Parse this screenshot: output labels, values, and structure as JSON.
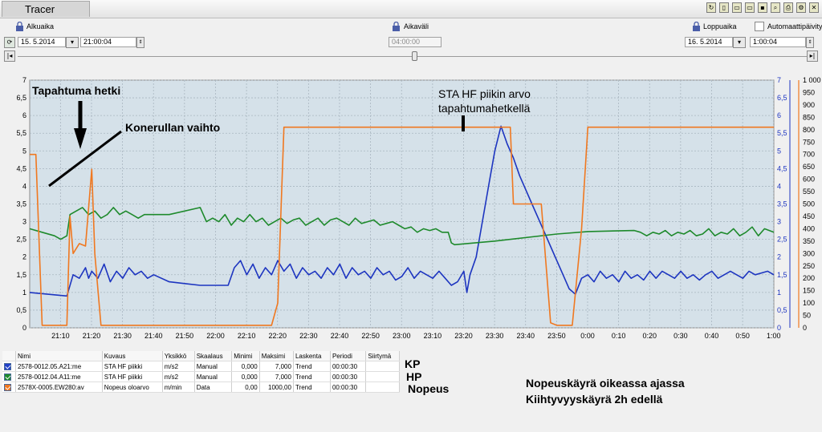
{
  "app": {
    "title": "Tracer"
  },
  "controls": {
    "start_label": "Alkuaika",
    "start_date": "15. 5.2014",
    "start_time": "21:00:04",
    "interval_label": "Aikaväli",
    "interval_value": "04:00:00",
    "end_label": "Loppuaika",
    "auto_update_label": "Automaattipäivitys",
    "end_date": "16. 5.2014",
    "end_time": "1:00:04"
  },
  "chart_data": {
    "type": "line",
    "x_ticks": [
      "21:10",
      "21:20",
      "21:30",
      "21:40",
      "21:50",
      "22:00",
      "22:10",
      "22:20",
      "22:30",
      "22:40",
      "22:50",
      "23:00",
      "23:10",
      "23:20",
      "23:30",
      "23:40",
      "23:50",
      "0:00",
      "0:10",
      "0:20",
      "0:30",
      "0:40",
      "0:50",
      "1:00"
    ],
    "xlim": [
      "21:00:04",
      "1:00:04"
    ],
    "y_left_ticks": [
      "0",
      "0,5",
      "1",
      "1,5",
      "2",
      "2,5",
      "3",
      "3,5",
      "4",
      "4,5",
      "5",
      "5,5",
      "6",
      "6,5",
      "7"
    ],
    "y_left_range": [
      0,
      7
    ],
    "y_right1_ticks": [
      "0",
      "0,5",
      "1",
      "1,5",
      "2",
      "2,5",
      "3",
      "3,5",
      "4",
      "4,5",
      "5",
      "5,5",
      "6",
      "6,5",
      "7"
    ],
    "y_right2_ticks": [
      "0",
      "50",
      "100",
      "150",
      "200",
      "250",
      "300",
      "350",
      "400",
      "450",
      "500",
      "550",
      "600",
      "650",
      "700",
      "750",
      "800",
      "850",
      "900",
      "950",
      "1 000"
    ],
    "y_right2_range": [
      0,
      1000
    ],
    "grid": true,
    "colors": {
      "plot_bg": "#d5e1e9",
      "series_kp": "#1d35c0",
      "series_hp": "#1e8a2c",
      "series_speed": "#f07820"
    },
    "series": [
      {
        "id": "kp",
        "axis": "left",
        "points": [
          [
            0,
            1.0
          ],
          [
            12,
            0.9
          ],
          [
            14,
            1.5
          ],
          [
            16,
            1.4
          ],
          [
            18,
            1.7
          ],
          [
            19,
            1.4
          ],
          [
            20,
            1.6
          ],
          [
            22,
            1.4
          ],
          [
            24,
            1.8
          ],
          [
            26,
            1.3
          ],
          [
            28,
            1.6
          ],
          [
            30,
            1.4
          ],
          [
            32,
            1.7
          ],
          [
            34,
            1.5
          ],
          [
            36,
            1.6
          ],
          [
            38,
            1.4
          ],
          [
            40,
            1.5
          ],
          [
            45,
            1.3
          ],
          [
            50,
            1.25
          ],
          [
            55,
            1.2
          ],
          [
            60,
            1.2
          ],
          [
            64,
            1.2
          ],
          [
            66,
            1.7
          ],
          [
            68,
            1.9
          ],
          [
            70,
            1.5
          ],
          [
            72,
            1.8
          ],
          [
            74,
            1.4
          ],
          [
            76,
            1.7
          ],
          [
            78,
            1.5
          ],
          [
            80,
            1.9
          ],
          [
            82,
            1.6
          ],
          [
            84,
            1.8
          ],
          [
            86,
            1.4
          ],
          [
            88,
            1.7
          ],
          [
            90,
            1.5
          ],
          [
            92,
            1.6
          ],
          [
            94,
            1.4
          ],
          [
            96,
            1.7
          ],
          [
            98,
            1.5
          ],
          [
            100,
            1.8
          ],
          [
            102,
            1.4
          ],
          [
            104,
            1.7
          ],
          [
            106,
            1.5
          ],
          [
            108,
            1.6
          ],
          [
            110,
            1.4
          ],
          [
            112,
            1.7
          ],
          [
            114,
            1.5
          ],
          [
            116,
            1.6
          ],
          [
            118,
            1.35
          ],
          [
            120,
            1.45
          ],
          [
            122,
            1.7
          ],
          [
            124,
            1.4
          ],
          [
            126,
            1.6
          ],
          [
            128,
            1.5
          ],
          [
            130,
            1.4
          ],
          [
            132,
            1.6
          ],
          [
            134,
            1.4
          ],
          [
            136,
            1.2
          ],
          [
            138,
            1.3
          ],
          [
            140,
            1.6
          ],
          [
            141,
            1.0
          ],
          [
            142,
            1.5
          ],
          [
            144,
            2.0
          ],
          [
            146,
            3.0
          ],
          [
            148,
            4.0
          ],
          [
            150,
            5.0
          ],
          [
            152,
            5.7
          ],
          [
            154,
            5.2
          ],
          [
            156,
            4.8
          ],
          [
            158,
            4.3
          ],
          [
            160,
            3.9
          ],
          [
            162,
            3.5
          ],
          [
            164,
            3.1
          ],
          [
            166,
            2.7
          ],
          [
            168,
            2.3
          ],
          [
            170,
            1.9
          ],
          [
            172,
            1.5
          ],
          [
            174,
            1.1
          ],
          [
            176,
            0.95
          ],
          [
            178,
            1.4
          ],
          [
            180,
            1.5
          ],
          [
            182,
            1.3
          ],
          [
            184,
            1.6
          ],
          [
            186,
            1.4
          ],
          [
            188,
            1.5
          ],
          [
            190,
            1.3
          ],
          [
            192,
            1.6
          ],
          [
            194,
            1.4
          ],
          [
            196,
            1.5
          ],
          [
            198,
            1.35
          ],
          [
            200,
            1.6
          ],
          [
            202,
            1.4
          ],
          [
            204,
            1.6
          ],
          [
            206,
            1.5
          ],
          [
            208,
            1.4
          ],
          [
            210,
            1.6
          ],
          [
            212,
            1.4
          ],
          [
            214,
            1.5
          ],
          [
            216,
            1.35
          ],
          [
            218,
            1.5
          ],
          [
            220,
            1.6
          ],
          [
            222,
            1.4
          ],
          [
            224,
            1.5
          ],
          [
            226,
            1.6
          ],
          [
            228,
            1.5
          ],
          [
            230,
            1.4
          ],
          [
            232,
            1.6
          ],
          [
            234,
            1.5
          ],
          [
            236,
            1.55
          ],
          [
            238,
            1.6
          ],
          [
            240,
            1.5
          ]
        ]
      },
      {
        "id": "hp",
        "axis": "left",
        "points": [
          [
            0,
            2.8
          ],
          [
            4,
            2.7
          ],
          [
            8,
            2.6
          ],
          [
            10,
            2.5
          ],
          [
            12,
            2.6
          ],
          [
            13,
            3.2
          ],
          [
            15,
            3.3
          ],
          [
            17,
            3.4
          ],
          [
            19,
            3.2
          ],
          [
            21,
            3.3
          ],
          [
            23,
            3.1
          ],
          [
            25,
            3.2
          ],
          [
            27,
            3.4
          ],
          [
            29,
            3.2
          ],
          [
            31,
            3.3
          ],
          [
            33,
            3.2
          ],
          [
            35,
            3.1
          ],
          [
            37,
            3.2
          ],
          [
            45,
            3.2
          ],
          [
            55,
            3.4
          ],
          [
            57,
            3.0
          ],
          [
            59,
            3.1
          ],
          [
            61,
            3.0
          ],
          [
            63,
            3.2
          ],
          [
            65,
            2.9
          ],
          [
            67,
            3.1
          ],
          [
            69,
            3.0
          ],
          [
            71,
            3.2
          ],
          [
            73,
            3.0
          ],
          [
            75,
            3.1
          ],
          [
            77,
            2.9
          ],
          [
            79,
            3.0
          ],
          [
            81,
            3.1
          ],
          [
            83,
            2.95
          ],
          [
            85,
            3.05
          ],
          [
            87,
            3.1
          ],
          [
            89,
            2.9
          ],
          [
            91,
            3.0
          ],
          [
            93,
            3.1
          ],
          [
            95,
            2.9
          ],
          [
            97,
            3.05
          ],
          [
            99,
            3.1
          ],
          [
            101,
            3.0
          ],
          [
            103,
            2.9
          ],
          [
            105,
            3.1
          ],
          [
            107,
            2.95
          ],
          [
            109,
            3.0
          ],
          [
            111,
            3.05
          ],
          [
            113,
            2.9
          ],
          [
            115,
            2.95
          ],
          [
            117,
            3.0
          ],
          [
            119,
            2.9
          ],
          [
            121,
            2.8
          ],
          [
            123,
            2.85
          ],
          [
            125,
            2.7
          ],
          [
            127,
            2.8
          ],
          [
            129,
            2.75
          ],
          [
            131,
            2.8
          ],
          [
            133,
            2.7
          ],
          [
            135,
            2.7
          ],
          [
            136,
            2.4
          ],
          [
            137,
            2.35
          ],
          [
            150,
            2.45
          ],
          [
            170,
            2.65
          ],
          [
            180,
            2.72
          ],
          [
            195,
            2.75
          ],
          [
            197,
            2.7
          ],
          [
            199,
            2.6
          ],
          [
            201,
            2.7
          ],
          [
            203,
            2.65
          ],
          [
            205,
            2.75
          ],
          [
            207,
            2.6
          ],
          [
            209,
            2.7
          ],
          [
            211,
            2.65
          ],
          [
            213,
            2.75
          ],
          [
            215,
            2.6
          ],
          [
            217,
            2.65
          ],
          [
            219,
            2.8
          ],
          [
            221,
            2.6
          ],
          [
            223,
            2.7
          ],
          [
            225,
            2.65
          ],
          [
            227,
            2.8
          ],
          [
            229,
            2.6
          ],
          [
            231,
            2.7
          ],
          [
            233,
            2.85
          ],
          [
            235,
            2.6
          ],
          [
            237,
            2.8
          ],
          [
            240,
            2.7
          ]
        ]
      },
      {
        "id": "speed",
        "axis": "right2",
        "points": [
          [
            0,
            700
          ],
          [
            2,
            700
          ],
          [
            4,
            10
          ],
          [
            10,
            10
          ],
          [
            12,
            10
          ],
          [
            13,
            450
          ],
          [
            14,
            300
          ],
          [
            16,
            340
          ],
          [
            18,
            330
          ],
          [
            20,
            640
          ],
          [
            21,
            300
          ],
          [
            23,
            10
          ],
          [
            30,
            10
          ],
          [
            70,
            10
          ],
          [
            78,
            10
          ],
          [
            80,
            100
          ],
          [
            82,
            810
          ],
          [
            84,
            810
          ],
          [
            150,
            810
          ],
          [
            155,
            810
          ],
          [
            156,
            500
          ],
          [
            165,
            500
          ],
          [
            168,
            20
          ],
          [
            170,
            10
          ],
          [
            175,
            10
          ],
          [
            178,
            400
          ],
          [
            180,
            810
          ],
          [
            200,
            810
          ],
          [
            240,
            810
          ]
        ]
      }
    ]
  },
  "annotations": {
    "event_time": "Tapahtuma hetki",
    "roller_change": "Konerullan vaihto",
    "sta_hf_peak": "STA HF piikin arvo\ntapahtumahetkellä",
    "kp": "KP",
    "hp": "HP",
    "speed": "Nopeus",
    "note_line1": "Nopeuskäyrä oikeassa ajassa",
    "note_line2": "Kiihtyvyyskäyrä 2h edellä"
  },
  "legend": {
    "headers": [
      "Nimi",
      "Kuvaus",
      "Yksikkö",
      "Skaalaus",
      "Minimi",
      "Maksimi",
      "Laskenta",
      "Periodi",
      "Siirtymä"
    ],
    "rows": [
      {
        "name": "2578-0012.05.A21:me",
        "desc": "STA HF piikki",
        "unit": "m/s2",
        "scale": "Manual",
        "min": "0,000",
        "max": "7,000",
        "calc": "Trend",
        "period": "00:00:30",
        "shift": "",
        "color": "#2040c8"
      },
      {
        "name": "2578-0012.04.A11:me",
        "desc": "STA HF piikki",
        "unit": "m/s2",
        "scale": "Manual",
        "min": "0,000",
        "max": "7,000",
        "calc": "Trend",
        "period": "00:00:30",
        "shift": "",
        "color": "#1e8a2c"
      },
      {
        "name": "2578X-0005.EW280:av",
        "desc": "Nopeus oloarvo",
        "unit": "m/min",
        "scale": "Data",
        "min": "0,00",
        "max": "1000,00",
        "calc": "Trend",
        "period": "00:00:30",
        "shift": "",
        "color": "#f07820"
      }
    ]
  }
}
